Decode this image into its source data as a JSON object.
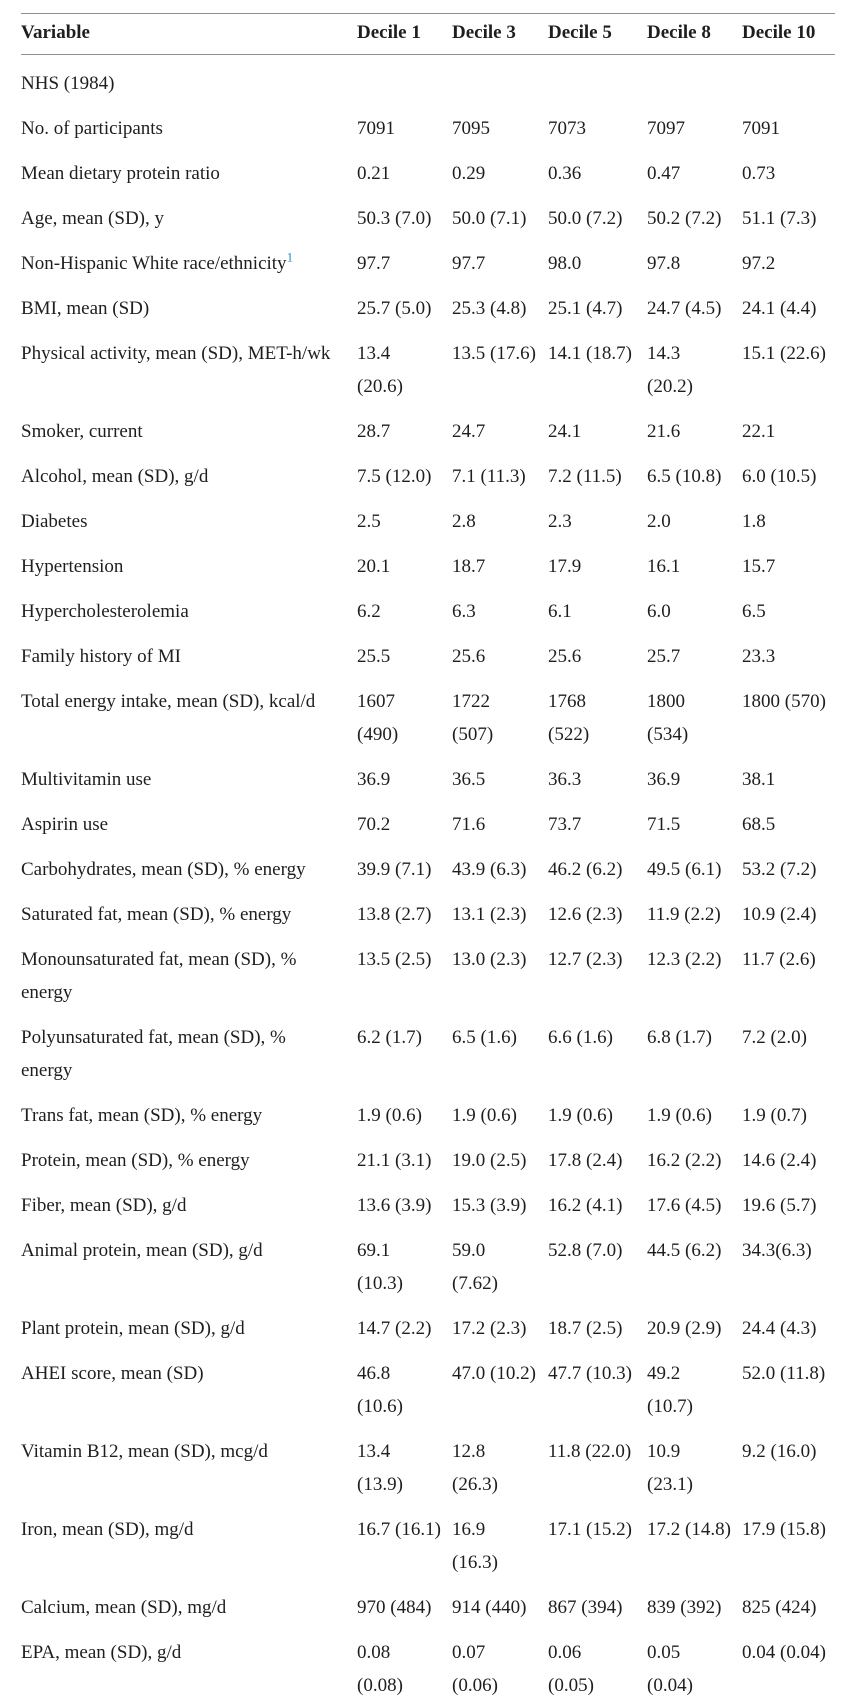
{
  "colors": {
    "text": "#1e1e1e",
    "rule": "#8e8e8e",
    "footnote_link": "#2b87c4"
  },
  "table": {
    "columns": [
      "Variable",
      "Decile 1",
      "Decile 3",
      "Decile 5",
      "Decile 8",
      "Decile 10"
    ],
    "rows": [
      {
        "label": "NHS (1984)",
        "section": true,
        "values": []
      },
      {
        "label": "No. of participants",
        "values": [
          "7091",
          "7095",
          "7073",
          "7097",
          "7091"
        ]
      },
      {
        "label": "Mean dietary protein ratio",
        "values": [
          "0.21",
          "0.29",
          "0.36",
          "0.47",
          "0.73"
        ]
      },
      {
        "label": "Age, mean (SD), y",
        "values": [
          "50.3 (7.0)",
          "50.0 (7.1)",
          "50.0 (7.2)",
          "50.2 (7.2)",
          "51.1 (7.3)"
        ]
      },
      {
        "label": "Non-Hispanic White race/ethnicity",
        "sup": "1",
        "values": [
          "97.7",
          "97.7",
          "98.0",
          "97.8",
          "97.2"
        ]
      },
      {
        "label": "BMI, mean (SD)",
        "values": [
          "25.7 (5.0)",
          "25.3 (4.8)",
          "25.1 (4.7)",
          "24.7 (4.5)",
          "24.1 (4.4)"
        ]
      },
      {
        "label": "Physical activity, mean (SD), MET-h/wk",
        "values": [
          "13.4\n(20.6)",
          "13.5 (17.6)",
          "14.1 (18.7)",
          "14.3\n(20.2)",
          "15.1 (22.6)"
        ]
      },
      {
        "label": "Smoker, current",
        "values": [
          "28.7",
          "24.7",
          "24.1",
          "21.6",
          "22.1"
        ]
      },
      {
        "label": "Alcohol, mean (SD), g/d",
        "values": [
          "7.5 (12.0)",
          "7.1 (11.3)",
          "7.2 (11.5)",
          "6.5 (10.8)",
          "6.0 (10.5)"
        ]
      },
      {
        "label": "Diabetes",
        "values": [
          "2.5",
          "2.8",
          "2.3",
          "2.0",
          "1.8"
        ]
      },
      {
        "label": "Hypertension",
        "values": [
          "20.1",
          "18.7",
          "17.9",
          "16.1",
          "15.7"
        ]
      },
      {
        "label": "Hypercholesterolemia",
        "values": [
          "6.2",
          "6.3",
          "6.1",
          "6.0",
          "6.5"
        ]
      },
      {
        "label": "Family history of MI",
        "values": [
          "25.5",
          "25.6",
          "25.6",
          "25.7",
          "23.3"
        ]
      },
      {
        "label": "Total energy intake, mean (SD), kcal/d",
        "values": [
          "1607\n(490)",
          "1722\n(507)",
          "1768\n(522)",
          "1800\n(534)",
          "1800 (570)"
        ]
      },
      {
        "label": "Multivitamin use",
        "values": [
          "36.9",
          "36.5",
          "36.3",
          "36.9",
          "38.1"
        ]
      },
      {
        "label": "Aspirin use",
        "values": [
          "70.2",
          "71.6",
          "73.7",
          "71.5",
          "68.5"
        ]
      },
      {
        "label": "Carbohydrates, mean (SD), % energy",
        "values": [
          "39.9 (7.1)",
          "43.9 (6.3)",
          "46.2 (6.2)",
          "49.5 (6.1)",
          "53.2 (7.2)"
        ]
      },
      {
        "label": "Saturated fat, mean (SD), % energy",
        "values": [
          "13.8 (2.7)",
          "13.1 (2.3)",
          "12.6 (2.3)",
          "11.9 (2.2)",
          "10.9 (2.4)"
        ]
      },
      {
        "label": "Monounsaturated fat, mean (SD), %\nenergy",
        "values": [
          "13.5 (2.5)",
          "13.0 (2.3)",
          "12.7 (2.3)",
          "12.3 (2.2)",
          "11.7 (2.6)"
        ]
      },
      {
        "label": "Polyunsaturated fat, mean (SD), %\nenergy",
        "values": [
          "6.2 (1.7)",
          "6.5 (1.6)",
          "6.6 (1.6)",
          "6.8 (1.7)",
          "7.2 (2.0)"
        ]
      },
      {
        "label": "Trans fat, mean (SD), % energy",
        "values": [
          "1.9 (0.6)",
          "1.9 (0.6)",
          "1.9 (0.6)",
          "1.9 (0.6)",
          "1.9 (0.7)"
        ]
      },
      {
        "label": "Protein, mean (SD), % energy",
        "values": [
          "21.1 (3.1)",
          "19.0 (2.5)",
          "17.8 (2.4)",
          "16.2 (2.2)",
          "14.6 (2.4)"
        ]
      },
      {
        "label": "Fiber, mean (SD), g/d",
        "values": [
          "13.6 (3.9)",
          "15.3 (3.9)",
          "16.2 (4.1)",
          "17.6 (4.5)",
          "19.6 (5.7)"
        ]
      },
      {
        "label": "Animal protein, mean (SD), g/d",
        "values": [
          "69.1\n(10.3)",
          "59.0\n(7.62)",
          "52.8 (7.0)",
          "44.5 (6.2)",
          "34.3(6.3)"
        ]
      },
      {
        "label": "Plant protein, mean (SD), g/d",
        "values": [
          "14.7 (2.2)",
          "17.2 (2.3)",
          "18.7 (2.5)",
          "20.9 (2.9)",
          "24.4 (4.3)"
        ]
      },
      {
        "label": "AHEI score, mean (SD)",
        "values": [
          "46.8\n(10.6)",
          "47.0 (10.2)",
          "47.7 (10.3)",
          "49.2\n(10.7)",
          "52.0 (11.8)"
        ]
      },
      {
        "label": "Vitamin B12, mean (SD), mcg/d",
        "values": [
          "13.4\n(13.9)",
          "12.8\n(26.3)",
          "11.8 (22.0)",
          "10.9\n(23.1)",
          "9.2 (16.0)"
        ]
      },
      {
        "label": "Iron, mean (SD), mg/d",
        "values": [
          "16.7 (16.1)",
          "16.9\n(16.3)",
          "17.1 (15.2)",
          "17.2 (14.8)",
          "17.9 (15.8)"
        ]
      },
      {
        "label": "Calcium, mean (SD), mg/d",
        "values": [
          "970 (484)",
          "914 (440)",
          "867 (394)",
          "839 (392)",
          "825 (424)"
        ]
      },
      {
        "label": "EPA, mean (SD), g/d",
        "values": [
          "0.08\n(0.08)",
          "0.07\n(0.06)",
          "0.06\n(0.05)",
          "0.05\n(0.04)",
          "0.04 (0.04)"
        ]
      }
    ]
  }
}
